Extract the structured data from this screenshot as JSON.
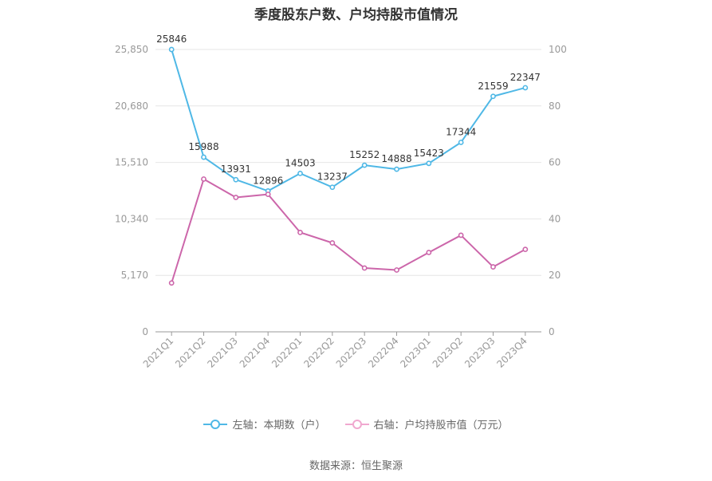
{
  "chart_data": {
    "type": "line",
    "title": "季度股东户数、户均持股市值情况",
    "categories": [
      "2021Q1",
      "2021Q2",
      "2021Q3",
      "2021Q4",
      "2022Q1",
      "2022Q2",
      "2022Q3",
      "2022Q4",
      "2023Q1",
      "2023Q2",
      "2023Q3",
      "2023Q4"
    ],
    "left_axis": {
      "ticks": [
        "0",
        "5,170",
        "10,340",
        "15,510",
        "20,680",
        "25,850"
      ],
      "ylim": [
        0,
        25850
      ]
    },
    "right_axis": {
      "ticks": [
        "0",
        "20",
        "40",
        "60",
        "80",
        "100"
      ],
      "ylim": [
        0,
        100
      ]
    },
    "series": [
      {
        "name": "左轴：本期数（户）",
        "axis": "left",
        "color": "#4fb8e6",
        "values": [
          25846,
          15988,
          13931,
          12896,
          14503,
          13237,
          15252,
          14888,
          15423,
          17344,
          21559,
          22347
        ],
        "labels": [
          "25846",
          "15988",
          "13931",
          "12896",
          "14503",
          "13237",
          "15252",
          "14888",
          "15423",
          "17344",
          "21559",
          "22347"
        ]
      },
      {
        "name": "右轴：户均持股市值（万元）",
        "axis": "right",
        "color": "#cc66aa",
        "values": [
          17.3,
          54.1,
          47.6,
          48.7,
          35.2,
          31.5,
          22.6,
          21.9,
          28.1,
          34.2,
          23.0,
          29.2
        ]
      }
    ],
    "grid": true,
    "legend_position": "bottom"
  },
  "source": "数据来源：恒生聚源"
}
